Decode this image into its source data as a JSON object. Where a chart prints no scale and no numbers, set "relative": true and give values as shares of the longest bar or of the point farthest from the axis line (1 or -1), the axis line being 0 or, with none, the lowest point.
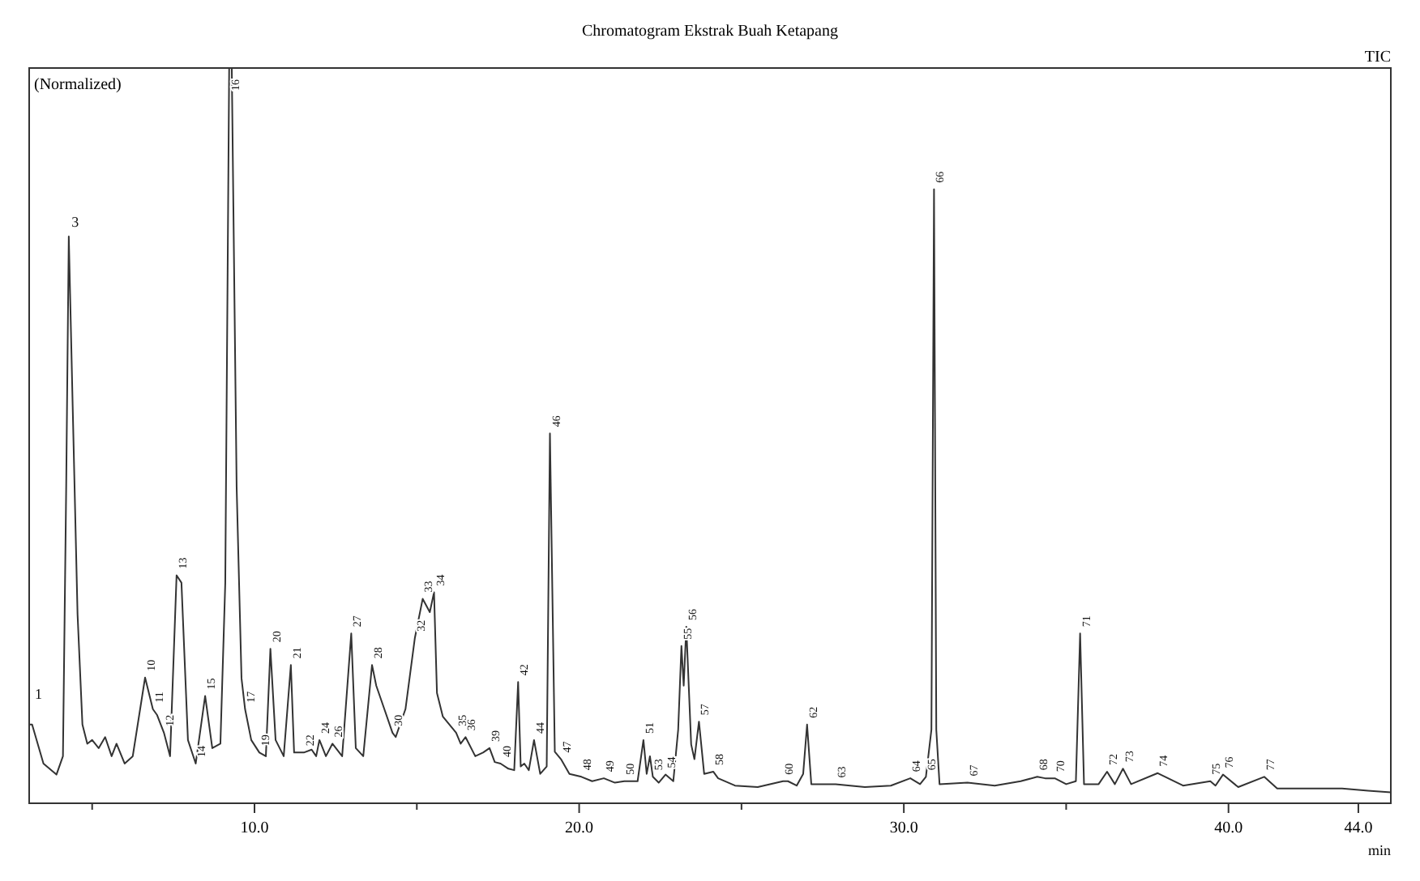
{
  "chart_data": {
    "type": "line",
    "title": "Chromatogram Ekstrak Buah Ketapang",
    "xlabel": "min",
    "relative": true,
    "grid": false,
    "marker": "none",
    "line_style": "solid",
    "xlim": [
      3.06,
      45.0
    ],
    "xticks": [
      {
        "value": 5,
        "label": null
      },
      {
        "value": 10,
        "label": "10.0"
      },
      {
        "value": 15,
        "label": null
      },
      {
        "value": 20,
        "label": "20.0"
      },
      {
        "value": 25,
        "label": null
      },
      {
        "value": 30,
        "label": "30.0"
      },
      {
        "value": 35,
        "label": null
      },
      {
        "value": 40,
        "label": "40.0"
      },
      {
        "value": 44,
        "label": "44.0"
      }
    ],
    "series": [
      {
        "color": "#333333",
        "x": [
          3.06,
          3.15,
          3.5,
          3.9,
          4.1,
          4.2,
          4.28,
          4.4,
          4.55,
          4.7,
          4.85,
          5.0,
          5.2,
          5.4,
          5.6,
          5.75,
          6.0,
          6.25,
          6.63,
          6.87,
          7.0,
          7.21,
          7.4,
          7.6,
          7.75,
          7.95,
          8.19,
          8.48,
          8.7,
          8.95,
          9.1,
          9.22,
          9.3,
          9.45,
          9.6,
          9.71,
          9.9,
          10.15,
          10.35,
          10.49,
          10.65,
          10.9,
          11.12,
          11.22,
          11.52,
          11.76,
          11.9,
          12.0,
          12.2,
          12.4,
          12.7,
          12.98,
          13.12,
          13.35,
          13.62,
          13.75,
          14.0,
          14.25,
          14.35,
          14.45,
          14.65,
          14.94,
          15.18,
          15.4,
          15.53,
          15.62,
          15.8,
          16.21,
          16.35,
          16.5,
          16.8,
          17.04,
          17.24,
          17.4,
          17.58,
          17.82,
          18.0,
          18.12,
          18.2,
          18.31,
          18.45,
          18.61,
          18.8,
          19.0,
          19.1,
          19.25,
          19.44,
          19.7,
          20.07,
          20.4,
          20.76,
          21.1,
          21.39,
          21.8,
          21.98,
          22.08,
          22.18,
          22.27,
          22.45,
          22.66,
          22.9,
          23.05,
          23.15,
          23.22,
          23.3,
          23.45,
          23.55,
          23.69,
          23.85,
          24.13,
          24.28,
          24.8,
          25.5,
          26.28,
          26.43,
          26.7,
          26.9,
          27.02,
          27.15,
          27.9,
          28.8,
          29.6,
          30.2,
          30.5,
          30.68,
          30.85,
          30.93,
          31.0,
          31.1,
          31.96,
          32.8,
          33.6,
          34.11,
          34.35,
          34.65,
          35.0,
          35.3,
          35.43,
          35.55,
          36.0,
          36.26,
          36.5,
          36.75,
          37.0,
          37.82,
          38.6,
          39.44,
          39.6,
          39.83,
          40.3,
          41.1,
          41.5,
          42.5,
          43.5,
          44.3,
          45.0
        ],
        "values": [
          0.107,
          0.107,
          0.054,
          0.039,
          0.064,
          0.43,
          0.771,
          0.54,
          0.257,
          0.107,
          0.081,
          0.086,
          0.075,
          0.09,
          0.064,
          0.081,
          0.054,
          0.064,
          0.171,
          0.128,
          0.12,
          0.096,
          0.064,
          0.31,
          0.3,
          0.086,
          0.054,
          0.146,
          0.075,
          0.081,
          0.3,
          1,
          1,
          0.43,
          0.17,
          0.128,
          0.086,
          0.069,
          0.064,
          0.21,
          0.086,
          0.064,
          0.188,
          0.069,
          0.069,
          0.073,
          0.064,
          0.086,
          0.064,
          0.081,
          0.064,
          0.231,
          0.075,
          0.064,
          0.188,
          0.16,
          0.128,
          0.096,
          0.09,
          0.103,
          0.128,
          0.225,
          0.278,
          0.26,
          0.287,
          0.15,
          0.118,
          0.096,
          0.081,
          0.09,
          0.064,
          0.069,
          0.075,
          0.056,
          0.054,
          0.047,
          0.045,
          0.165,
          0.05,
          0.054,
          0.045,
          0.086,
          0.04,
          0.05,
          0.503,
          0.07,
          0.06,
          0.04,
          0.036,
          0.03,
          0.034,
          0.028,
          0.03,
          0.03,
          0.086,
          0.04,
          0.064,
          0.036,
          0.028,
          0.039,
          0.03,
          0.1,
          0.214,
          0.16,
          0.24,
          0.08,
          0.06,
          0.111,
          0.04,
          0.043,
          0.034,
          0.024,
          0.022,
          0.03,
          0.03,
          0.024,
          0.04,
          0.107,
          0.026,
          0.026,
          0.022,
          0.024,
          0.034,
          0.026,
          0.036,
          0.1,
          0.835,
          0.1,
          0.026,
          0.028,
          0.024,
          0.03,
          0.036,
          0.034,
          0.034,
          0.026,
          0.03,
          0.231,
          0.026,
          0.026,
          0.043,
          0.026,
          0.047,
          0.026,
          0.041,
          0.024,
          0.03,
          0.024,
          0.039,
          0.022,
          0.036,
          0.02,
          0.02,
          0.02,
          0.017,
          0.015
        ]
      }
    ],
    "annotations": [
      "(Normalized)",
      "TIC",
      {
        "text": "1",
        "x": 3.15,
        "y": 0.107
      },
      {
        "text": "3",
        "x": 4.28,
        "y": 0.771
      },
      {
        "text": "10",
        "x": 6.63,
        "y": 0.171
      },
      {
        "text": "11",
        "x": 6.87,
        "y": 0.128
      },
      {
        "text": "12",
        "x": 7.21,
        "y": 0.096
      },
      {
        "text": "13",
        "x": 7.6,
        "y": 0.31
      },
      {
        "text": "14",
        "x": 8.19,
        "y": 0.054
      },
      {
        "text": "15",
        "x": 8.48,
        "y": 0.146
      },
      {
        "text": "16",
        "x": 9.22,
        "y": 1
      },
      {
        "text": "17",
        "x": 9.71,
        "y": 0.128
      },
      {
        "text": "19",
        "x": 10.15,
        "y": 0.069
      },
      {
        "text": "20",
        "x": 10.49,
        "y": 0.21
      },
      {
        "text": "21",
        "x": 11.12,
        "y": 0.188
      },
      {
        "text": "22",
        "x": 11.52,
        "y": 0.069
      },
      {
        "text": "24",
        "x": 12.0,
        "y": 0.086
      },
      {
        "text": "26",
        "x": 12.4,
        "y": 0.081
      },
      {
        "text": "27",
        "x": 12.98,
        "y": 0.231
      },
      {
        "text": "28",
        "x": 13.62,
        "y": 0.188
      },
      {
        "text": "30",
        "x": 14.25,
        "y": 0.096
      },
      {
        "text": "32",
        "x": 14.94,
        "y": 0.225
      },
      {
        "text": "33",
        "x": 15.18,
        "y": 0.278
      },
      {
        "text": "34",
        "x": 15.53,
        "y": 0.287
      },
      {
        "text": "35",
        "x": 16.21,
        "y": 0.096
      },
      {
        "text": "36",
        "x": 16.5,
        "y": 0.09
      },
      {
        "text": "39",
        "x": 17.24,
        "y": 0.075
      },
      {
        "text": "40",
        "x": 17.58,
        "y": 0.054
      },
      {
        "text": "42",
        "x": 18.12,
        "y": 0.165
      },
      {
        "text": "44",
        "x": 18.61,
        "y": 0.086
      },
      {
        "text": "46",
        "x": 19.1,
        "y": 0.503
      },
      {
        "text": "47",
        "x": 19.44,
        "y": 0.06
      },
      {
        "text": "48",
        "x": 20.07,
        "y": 0.036
      },
      {
        "text": "49",
        "x": 20.76,
        "y": 0.034
      },
      {
        "text": "50",
        "x": 21.39,
        "y": 0.03
      },
      {
        "text": "51",
        "x": 21.98,
        "y": 0.086
      },
      {
        "text": "53",
        "x": 22.27,
        "y": 0.036
      },
      {
        "text": "54",
        "x": 22.66,
        "y": 0.039
      },
      {
        "text": "55",
        "x": 23.15,
        "y": 0.214
      },
      {
        "text": "56",
        "x": 23.3,
        "y": 0.24
      },
      {
        "text": "57",
        "x": 23.69,
        "y": 0.111
      },
      {
        "text": "58",
        "x": 24.13,
        "y": 0.043
      },
      {
        "text": "60",
        "x": 26.28,
        "y": 0.03
      },
      {
        "text": "62",
        "x": 27.02,
        "y": 0.107
      },
      {
        "text": "63",
        "x": 27.9,
        "y": 0.026
      },
      {
        "text": "64",
        "x": 30.2,
        "y": 0.034
      },
      {
        "text": "65",
        "x": 30.68,
        "y": 0.036
      },
      {
        "text": "66",
        "x": 30.93,
        "y": 0.835
      },
      {
        "text": "67",
        "x": 31.96,
        "y": 0.028
      },
      {
        "text": "68",
        "x": 34.11,
        "y": 0.036
      },
      {
        "text": "70",
        "x": 34.65,
        "y": 0.034
      },
      {
        "text": "71",
        "x": 35.43,
        "y": 0.231
      },
      {
        "text": "72",
        "x": 36.26,
        "y": 0.043
      },
      {
        "text": "73",
        "x": 36.75,
        "y": 0.047
      },
      {
        "text": "74",
        "x": 37.82,
        "y": 0.041
      },
      {
        "text": "75",
        "x": 39.44,
        "y": 0.03
      },
      {
        "text": "76",
        "x": 39.83,
        "y": 0.039
      },
      {
        "text": "77",
        "x": 41.1,
        "y": 0.036
      }
    ]
  }
}
